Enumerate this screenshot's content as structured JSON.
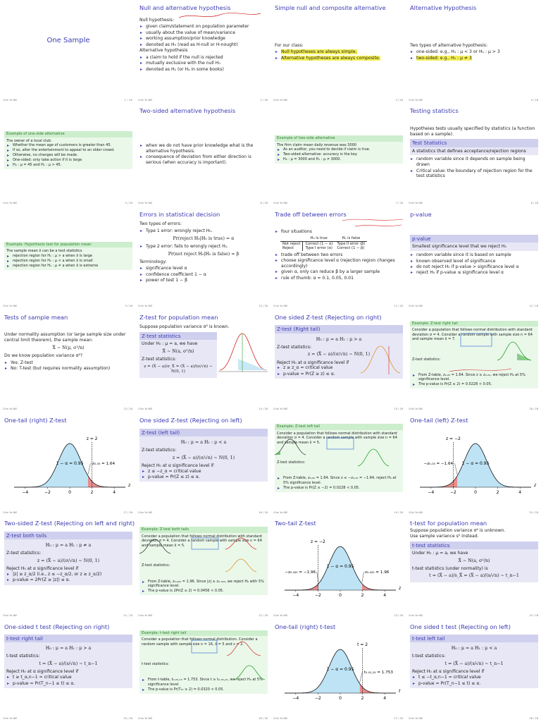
{
  "footer_left": "Chin Yu NIE",
  "slides": [
    {
      "big": "One Sample"
    },
    {
      "title": "Null and alternative hypothesis",
      "l1": "Null hypothesis:",
      "b1": [
        "given claim/statement on population parameter",
        "usually about the value of mean/variance",
        "working assumption/prior knowledge",
        "denoted as H₀ (read as H-null or H-nought)"
      ],
      "l2": "Alternative hypothesis",
      "b2": [
        "a claim to hold if the null is rejected",
        "mutually exclusive with the null H₀",
        "denoted as H₁ (or Hₐ in some books)"
      ]
    },
    {
      "title": "Simple null and composite alternative",
      "l1": "For our class:",
      "b1": [
        "Null hypotheses are always simple.",
        "Alternative hypotheses are always composite."
      ]
    },
    {
      "title": "Alternative Hypothesis",
      "l1": "Two types of alternative hypothesis:",
      "b1": [
        "one-sided: e.g., H₁ : μ < 3 or H₁ : μ > 3",
        "two-sided: e.g., H₁ : μ ≠ 3"
      ]
    },
    {
      "ex_head": "Example of one-side alternative",
      "ex_text": "The owner of a local club:",
      "ex_items": [
        "Whether the mean age of customers is greater than 45.",
        "If so, alter the entertainment to appeal to an older crowd.",
        "Otherwise, no changes will be made.",
        "One-sided: only take action if it is large",
        "H₀ : μ = 45 and H₁ : μ > 45."
      ]
    },
    {
      "title": "Two-sided alternative hypothesis",
      "b1": [
        "when we do not have prior knowledge what is the alternative hypothesis.",
        "consequence of deviation from either direction is serious (when accuracy is important)."
      ]
    },
    {
      "ex_head": "Example of two-side alternative",
      "ex_text": "The firm claim mean daily revenue was 3000",
      "ex_items": [
        "As an auditor, you need to decide if claim is true.",
        "Two-sided alternative: accuracy is the key",
        "H₀ : μ = 3000 and H₁ : μ ≠ 3000."
      ]
    },
    {
      "title": "Testing statistics",
      "l1": "Hypotheies tests usually specified by statistics (a function based on a sample).",
      "bh": "Test Statistics",
      "bb": "A statistics that defines acceptance/rejection regions",
      "b1": [
        "random variable since it depends on sample being drawn",
        "Critical value: the boundary of rejection region for the test statistics"
      ]
    },
    {
      "ex_head": "Example: Hypothesis test for population mean",
      "ex_text": "The sample mean x̄ can be a test statistics",
      "ex_items": [
        "rejection region for H₁ : μ > a when x̄ is large",
        "rejection region for H₁ : μ < a when x̄ is small",
        "rejection region for H₁ : μ ≠ a when x̄ is extreme"
      ]
    },
    {
      "title": "Errors in statistical decision",
      "l1": "Two types of errors:",
      "e1": "Type 1 error: wrongly reject H₀.",
      "f1": "Pr(reject H₀|H₀ is true) = α",
      "e2": "Type 2 error: fails to wrongly reject H₀.",
      "f2": "Pr(not reject H₀|H₀ is false) = β",
      "l2": "Terminology:",
      "b2": [
        "significance level α",
        "confidence coefficient 1 − α",
        "power of test 1 − β"
      ]
    },
    {
      "title": "Trade off between errors",
      "b0": "four situations",
      "th": [
        "",
        "H₀ is true",
        "H₀ is false"
      ],
      "r1": [
        "Not reject",
        "Correct (1 − α)",
        "Type II error (β)"
      ],
      "r2": [
        "Reject",
        "Type I error (α)",
        "Correct (1 − β)"
      ],
      "b1": [
        "trade off between two errors",
        "choose significance level α (rejection region changes accordingly)",
        "given α, only can reduce β by a larger sample",
        "rule of thumb: α = 0.1, 0.05, 0.01"
      ]
    },
    {
      "title": "p-value",
      "bh": "p-value",
      "bb": "Smallest significance level that we reject H₀",
      "b1": [
        "random variable since it is based on sample",
        "known observed level of significance",
        "do not reject H₀ if p-value > significance level α",
        "reject H₀ if p-value ≤ significance level α"
      ]
    },
    {
      "title": "Tests of sample mean",
      "l1": "Under normality assumption (or large sample size under central limit theorem), the sample mean:",
      "f1": "X̄ ∼ N(μ, σ²/n)",
      "l2": "Do we know population variance σ²?",
      "b1": [
        "Yes: Z-test",
        "No: T-test (but requires normality assumption)"
      ]
    },
    {
      "title": "Z-test for population mean",
      "l1": "Suppose population variance σ² is known.",
      "bh": "Z-test statistics",
      "bb1": "Under H₀ : μ = a, we have",
      "f1": "X̄ ∼ N(a, σ²/n)",
      "bb2": "Z-test statistics:",
      "f2": "z = (X̄ − a)/σ_X̄ = (X̄ − a)/(σ/√n) ∼ N(0, 1)"
    },
    {
      "title": "One sided Z-test (Rejecting on right)",
      "bh": "Z-test (Right tail)",
      "f0": "H₀ : μ = a     H₁ : μ > a",
      "bb1": "Z-test statistics:",
      "f1": "z = (X̄ − a)/(σ/√n) ∼ N(0, 1)",
      "bb2": "Reject H₀ at α significance level if",
      "b1": [
        "z ≥ z_α = critical value",
        "p-value = Pr(Z ≥ z) ≤ α."
      ]
    },
    {
      "ex_head": "Example: Z-test right tail",
      "ex_text": "Consider a population that follows normal distribution with standard deviation σ = 4. Consider a random sample with sample size n = 64 and sample mean x̄ = 7.",
      "ex_mid": "Z-test statistics:",
      "ex_items": [
        "From Z-table, z₀.₀₅ = 1.64. Since z ≥ z₀.₀₅, we reject H₀ at 5% significance level.",
        "The p-value is Pr(Z ≥ 2) = 0.0228 < 0.05."
      ]
    },
    {
      "title": "One-tail (right) Z-test",
      "lab_z": "z = 2",
      "lab_crit": "z₀.₀₅ = 1.64",
      "lab_area": "1 − α = 0.95",
      "ticks": [
        "−4",
        "−2",
        "0",
        "2",
        "4"
      ],
      "axis": "z"
    },
    {
      "title": "One sided Z-test (Rejecting on left)",
      "bh": "Z-test (left tail)",
      "f0": "H₀ : μ = a     H₁ : μ < a",
      "bb1": "Z-test statistics:",
      "f1": "z = (X̄ − a)/(σ/√n) ∼ N(0, 1)",
      "bb2": "Reject H₀ at α significance level if",
      "b1": [
        "z ≤ −z_α = critical value",
        "p-value = Pr(Z ≤ z) ≤ α."
      ]
    },
    {
      "ex_head": "Example: Z-test left tail",
      "ex_text": "Consider a population that follows normal distribution with standard deviation σ = 4. Consider a random sample with sample size n = 64 and sample mean x̄ = 5.",
      "ex_mid": "Z-test statistics:",
      "ex_items": [
        "From Z-table, z₀.₀₅ = 1.64. Since z ≤ −z₀.₀₅ = −1.64, reject H₀ at 5% significance level.",
        "The p-value is Pr(Z ≤ −2) = 0.0228 < 0.05."
      ]
    },
    {
      "title": "One-tail (left) Z-test",
      "lab_z": "z = −2",
      "lab_crit": "−z₀.₀₅ = −1.64",
      "lab_area": "1 − α = 0.95",
      "ticks": [
        "−4",
        "−2",
        "0",
        "2",
        "4"
      ],
      "axis": "z"
    },
    {
      "title": "Two-sided Z-test (Rejecting on left and right)",
      "bh": "Z-test both tails",
      "f0": "H₀ : μ = a     H₁ : μ ≠ a",
      "bb1": "Z-test statistics:",
      "f1": "z = (X̄ − a)/(σ/√n) ∼ N(0, 1)",
      "bb2": "Reject H₀ at α significance level if",
      "b1": [
        "|z| ≥ z_α/2 (i.e., z ≤ −z_α/2, or z ≥ z_α/2)",
        "p-value = 2Pr(Z ≥ |z|) ≤ α."
      ]
    },
    {
      "ex_head": "Example: Z-test both tails",
      "ex_text": "Consider a population that follows normal distribution with standard deviation σ = 4. Consider a random sample with sample size n = 64 and sample mean x̄ = 5.",
      "ex_mid": "Z-test statistics:",
      "ex_items": [
        "From Z-table, z₀.₀₂₅ = 1.96. Since |z| ≥ z₀.₀₂₅, we reject H₀ with 5% significance level.",
        "The p-value is 2Pr(Z ≥ 2) = 0.0456 < 0.05."
      ]
    },
    {
      "title": "Two-tail Z-test",
      "lab_z": "z = −2",
      "lab_crit_l": "−z₀.₀₂₅ = −1.96",
      "lab_crit_r": "z₀.₀₂₅ = 1.96",
      "lab_area": "1 − α = 0.95",
      "ticks": [
        "−4",
        "−2",
        "0",
        "2",
        "4"
      ],
      "axis": "z"
    },
    {
      "title": "t-test for population mean",
      "l1": "Suppose population variance σ² is unknown.",
      "l2": "Use sample variance s² instead.",
      "bh": "t-test statistics",
      "bb1": "Under H₀ : μ = a, we have",
      "f1": "X̄ ∼ N(a, σ²/n)",
      "bb2": "t-test statistics (under normality) is",
      "f2": "t = (X̄ − a)/s_X̄ = (X̄ − a)/(s/√n) ∼ t_n−1"
    },
    {
      "title": "One-sided t test (Rejecting on right)",
      "bh": "t-test right tail",
      "f0": "H₀ : μ = a     H₁ : μ > a",
      "bb1": "t-test statistics:",
      "f1": "t = (X̄ − a)/(s/√n) ∼ t_n−1",
      "bb2": "Reject H₀ at α significance level if",
      "b1": [
        "t ≥ t_α,n−1 = critical value",
        "p-value = Pr(T_n−1 ≥ t) ≤ α."
      ]
    },
    {
      "ex_head": "Example: t-test right tail",
      "ex_text": "Consider a population that follows normal distribution. Consider a random sample with sample size n = 16, x̄ = 5 and s = 2.",
      "ex_mid": "t-test statistics:",
      "ex_items": [
        "From t-table, t₀.₀₅,₁₅ = 1.753. Since t ≥ t₀.₀₅,₁₅, we reject H₀ at 5% significance level.",
        "The p-value is Pr(T₁₅ ≥ 2) = 0.0320 < 0.05."
      ]
    },
    {
      "title": "One-tail (right) t-test",
      "lab_z": "t = 2",
      "lab_crit": "t₀.₀₅,₁₅ = 1.753",
      "lab_area": "1 − α = 0.95",
      "ticks": [
        "−4",
        "−2",
        "0",
        "2",
        "4"
      ],
      "axis": "t"
    },
    {
      "title": "One sided t test (Rejecting on left)",
      "bh": "t-test left tail",
      "f0": "H₀ : μ = a     H₁ : μ < a",
      "bb1": "t-test statistics:",
      "f1": "t = (X̄ − a)/(s/√n) ∼ t_n−1",
      "bb2": "Reject H₀ at α significance level if",
      "b1": [
        "t ≤ −t_α,n−1 = critical value",
        "p-value = Pr(T_n−1 ≤ t) ≤ α."
      ]
    }
  ],
  "pages": [
    "1 / 28",
    "2 / 28",
    "3 / 28",
    "4 / 28",
    "5 / 28",
    "6 / 28",
    "7 / 28",
    "8 / 28",
    "9 / 28",
    "10 / 28",
    "11 / 28",
    "12 / 28",
    "13 / 28",
    "14 / 28",
    "15 / 28",
    "16 / 28",
    "17 / 28",
    "18 / 28",
    "19 / 28",
    "20 / 28",
    "21 / 28",
    "22 / 28",
    "23 / 28",
    "24 / 28",
    "25 / 28",
    "26 / 28",
    "27 / 28",
    "28 / 28"
  ],
  "colors": {
    "title": "#3b3bb3",
    "block": "#cfcfee",
    "example": "#cdeecd",
    "curve_fill": "#bde3f5",
    "tail_fill": "#e88c8c",
    "ink_red": "#d42020",
    "ink_blue": "#2060d0",
    "ink_green": "#28a028",
    "ink_orange": "#e89020",
    "highlight": "#f5f055"
  }
}
